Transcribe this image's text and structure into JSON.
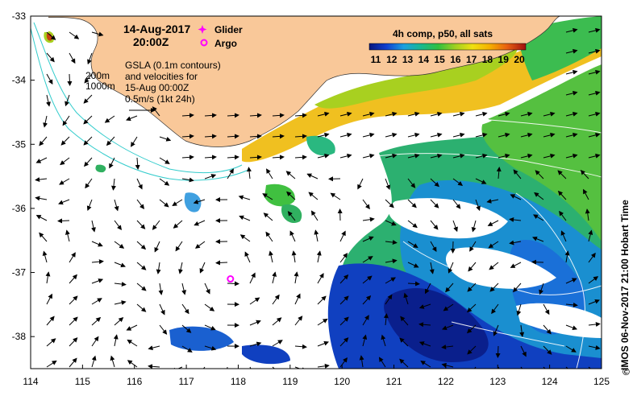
{
  "title": {
    "date": "14-Aug-2017",
    "time": "20:00Z"
  },
  "legend": {
    "glider": "Glider",
    "argo": "Argo",
    "glider_color": "#ff00ff",
    "argo_color": "#ff00ff"
  },
  "notes": {
    "gsla_line1": "GSLA (0.1m contours)",
    "gsla_line2": "and velocities for",
    "gsla_line3": "15-Aug 00:00Z",
    "scale_label": "0.5m/s (1kt 24h)",
    "depth_200": "200m",
    "depth_1000": "1000m"
  },
  "colorbar": {
    "title": "4h comp, p50, all sats",
    "ticks": [
      "11",
      "12",
      "13",
      "14",
      "15",
      "16",
      "17",
      "18",
      "19",
      "20"
    ],
    "min": 11,
    "max": 20
  },
  "credit": "IMOS 06-Nov-2017 21:00 Hobart Time",
  "axes": {
    "lon_ticks": [
      "114",
      "115",
      "116",
      "117",
      "118",
      "119",
      "120",
      "121",
      "122",
      "123",
      "124",
      "125"
    ],
    "lat_ticks": [
      "-33",
      "-34",
      "-35",
      "-36",
      "-37",
      "-38"
    ],
    "lon_range": [
      114,
      125
    ],
    "lat_range": [
      -38.5,
      -33
    ]
  },
  "argo_position": {
    "lon": 117.85,
    "lat": -37.1
  },
  "colors": {
    "land": "#f9c899",
    "cold": "#0a1f8c",
    "warm": "#f5c800",
    "contour_200m": "#33cccc"
  }
}
